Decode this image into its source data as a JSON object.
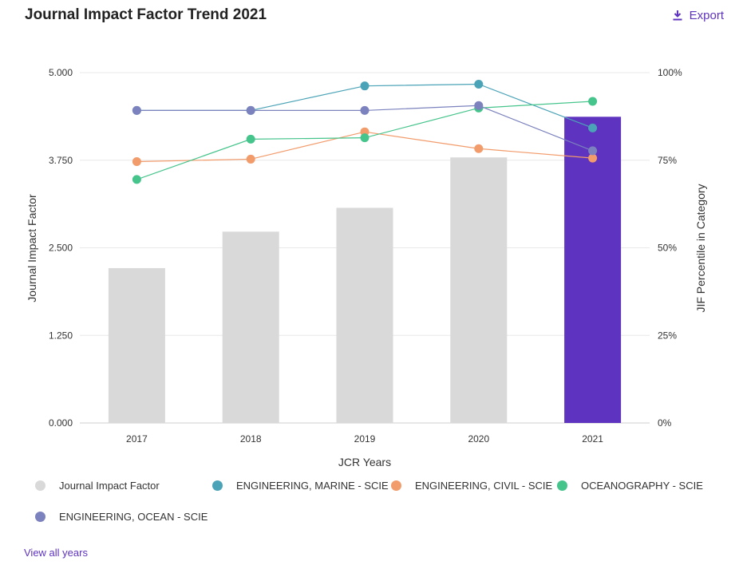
{
  "header": {
    "title": "Journal Impact Factor Trend 2021",
    "export_label": "Export",
    "export_icon": "download-icon"
  },
  "footer": {
    "view_all_label": "View all years"
  },
  "colors": {
    "bar": "#d9d9d9",
    "bar_highlight": "#5e33bf",
    "grid": "#e8e8e8",
    "link": "#5e33bf"
  },
  "chart_data": {
    "type": "bar",
    "title": "Journal Impact Factor Trend 2021",
    "xlabel": "JCR Years",
    "ylabel": "Journal Impact Factor",
    "y2label": "JIF Percentile in Category",
    "categories": [
      "2017",
      "2018",
      "2019",
      "2020",
      "2021"
    ],
    "ylim": [
      0,
      5
    ],
    "y2lim": [
      0,
      100
    ],
    "yticks": [
      "0.000",
      "1.250",
      "2.500",
      "3.750",
      "5.000"
    ],
    "y2ticks": [
      "0%",
      "25%",
      "50%",
      "75%",
      "100%"
    ],
    "grid": true,
    "legend_position": "bottom",
    "bar_series": {
      "name": "Journal Impact Factor",
      "values": [
        2.21,
        2.73,
        3.07,
        3.79,
        4.37
      ],
      "color": "#d9d9d9"
    },
    "line_series": [
      {
        "name": "ENGINEERING, MARINE - SCIE",
        "color": "#4ba3b7",
        "values": [
          89.2,
          89.2,
          96.2,
          96.7,
          84.2
        ]
      },
      {
        "name": "ENGINEERING, CIVIL - SCIE",
        "color": "#f29b6b",
        "values": [
          74.6,
          75.3,
          83.1,
          78.3,
          75.6
        ]
      },
      {
        "name": "OCEANOGRAPHY - SCIE",
        "color": "#45c48b",
        "values": [
          69.5,
          81.0,
          81.4,
          89.9,
          91.8
        ]
      },
      {
        "name": "ENGINEERING, OCEAN - SCIE",
        "color": "#7b82bd",
        "values": [
          89.2,
          89.2,
          89.2,
          90.6,
          77.7
        ]
      }
    ]
  }
}
